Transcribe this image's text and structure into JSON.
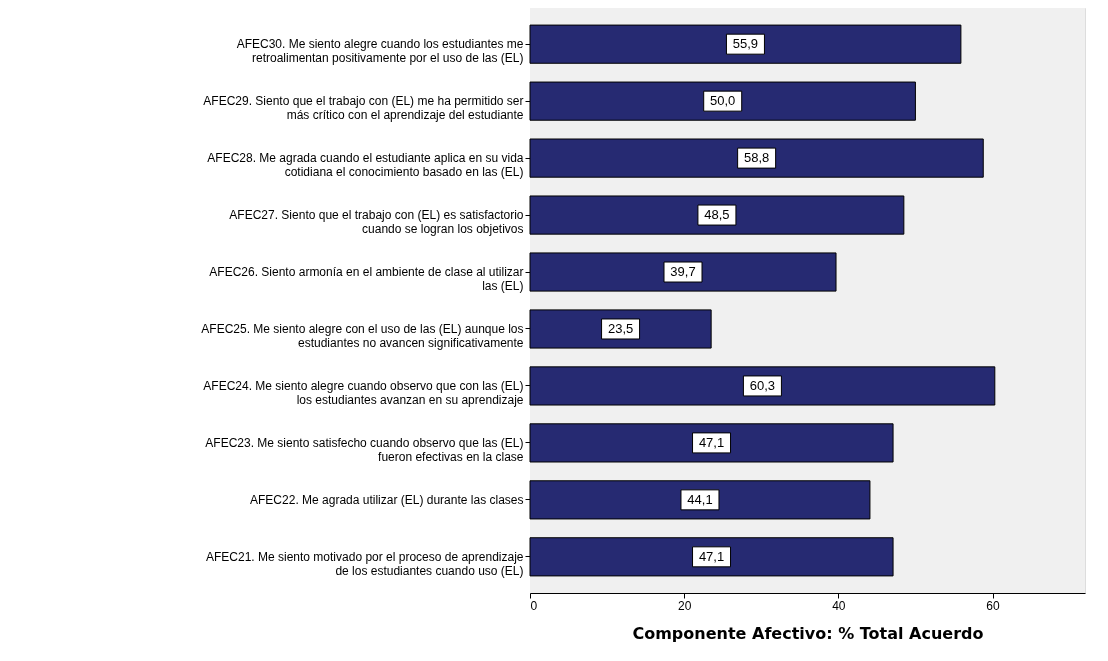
{
  "chart_data": {
    "type": "bar",
    "orientation": "horizontal",
    "xlabel": "Componente Afectivo: % Total Acuerdo",
    "categories": [
      "AFEC30. Me siento alegre cuando los estudiantes me retroalimentan positivamente por el uso de las (EL)",
      "AFEC29. Siento que el trabajo con (EL) me ha permitido ser más crítico con el aprendizaje del estudiante",
      "AFEC28. Me agrada cuando el estudiante aplica en su vida cotidiana el conocimiento basado en las (EL)",
      "AFEC27. Siento que el trabajo con (EL) es satisfactorio cuando se logran los objetivos",
      "AFEC26. Siento armonía en el ambiente de clase al utilizar las (EL)",
      "AFEC25. Me siento alegre con el uso de las (EL) aunque los estudiantes no avancen significativamente",
      "AFEC24. Me siento alegre cuando observo que con las (EL) los estudiantes avanzan en su aprendizaje",
      "AFEC23. Me siento satisfecho cuando observo que las (EL) fueron efectivas en la clase",
      "AFEC22. Me agrada utilizar (EL) durante las clases",
      "AFEC21. Me siento motivado por el proceso de aprendizaje de los estudiantes cuando uso (EL)"
    ],
    "values": [
      55.9,
      50.0,
      58.8,
      48.5,
      39.7,
      23.5,
      60.3,
      47.1,
      44.1,
      47.1
    ],
    "value_labels": [
      "55,9",
      "50,0",
      "58,8",
      "48,5",
      "39,7",
      "23,5",
      "60,3",
      "47,1",
      "44,1",
      "47,1"
    ],
    "color": "#262a72",
    "xlim": [
      0,
      72
    ],
    "xticks": [
      0,
      20,
      40,
      60
    ]
  }
}
